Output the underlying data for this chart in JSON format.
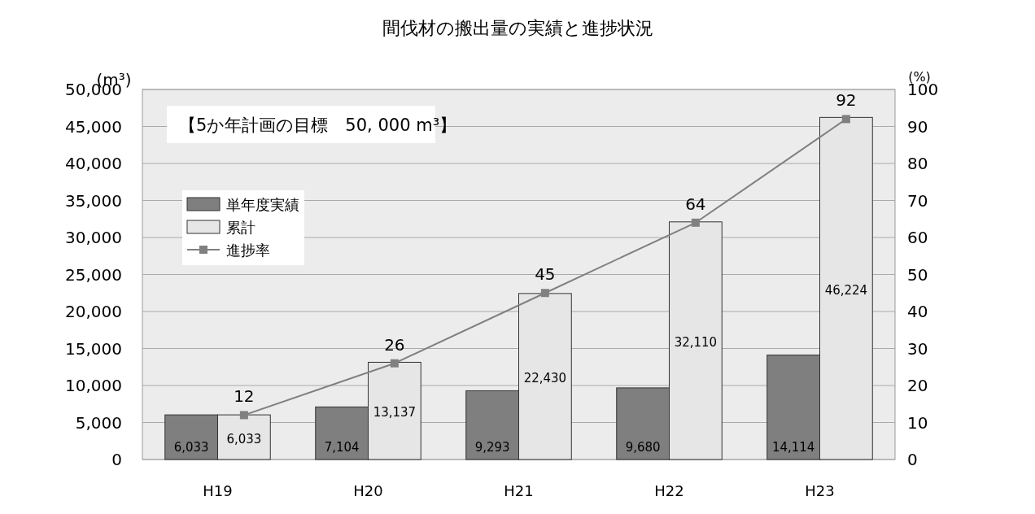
{
  "chart_data": {
    "type": "bar",
    "title": "間伐材の搬出量の実績と進捗状況",
    "ylabel": "(m³)",
    "y2label": "(%)",
    "annotations": [
      "【5か年計画の目標　50, 000 m³】"
    ],
    "categories": [
      "H19",
      "H20",
      "H21",
      "H22",
      "H23"
    ],
    "series": [
      {
        "name": "単年度実績",
        "color": "#7f7f7f",
        "values": [
          6033,
          7104,
          9293,
          9680,
          14114
        ],
        "value_labels": [
          "6,033",
          "7,104",
          "9,293",
          "9,680",
          "14,114"
        ]
      },
      {
        "name": "累計",
        "color": "#e6e6e6",
        "values": [
          6033,
          13137,
          22430,
          32110,
          46224
        ],
        "value_labels": [
          "6,033",
          "13,137",
          "22,430",
          "32,110",
          "46,224"
        ]
      },
      {
        "name": "進捗率",
        "type": "line",
        "axis": "y2",
        "color": "#808080",
        "marker": "square",
        "values": [
          12,
          26,
          45,
          64,
          92
        ]
      }
    ],
    "ylim": [
      0,
      50000
    ],
    "yticks": [
      0,
      {
        "value": 5000,
        "label": "5,000"
      },
      {
        "value": 10000,
        "label": "10,000"
      },
      {
        "value": 15000,
        "label": "15,000"
      },
      {
        "value": 20000,
        "label": "20,000"
      },
      {
        "value": 25000,
        "label": "25,000"
      },
      {
        "value": 30000,
        "label": "30,000"
      },
      {
        "value": 35000,
        "label": "35,000"
      },
      {
        "value": 40000,
        "label": "40,000"
      },
      {
        "value": 45000,
        "label": "45,000"
      },
      {
        "value": 50000,
        "label": "50,000"
      }
    ],
    "y2lim": [
      0,
      100
    ],
    "y2ticks": [
      0,
      10,
      20,
      30,
      40,
      50,
      60,
      70,
      80,
      90,
      100
    ],
    "grid": "y",
    "legend": "left",
    "data_labels": true
  }
}
